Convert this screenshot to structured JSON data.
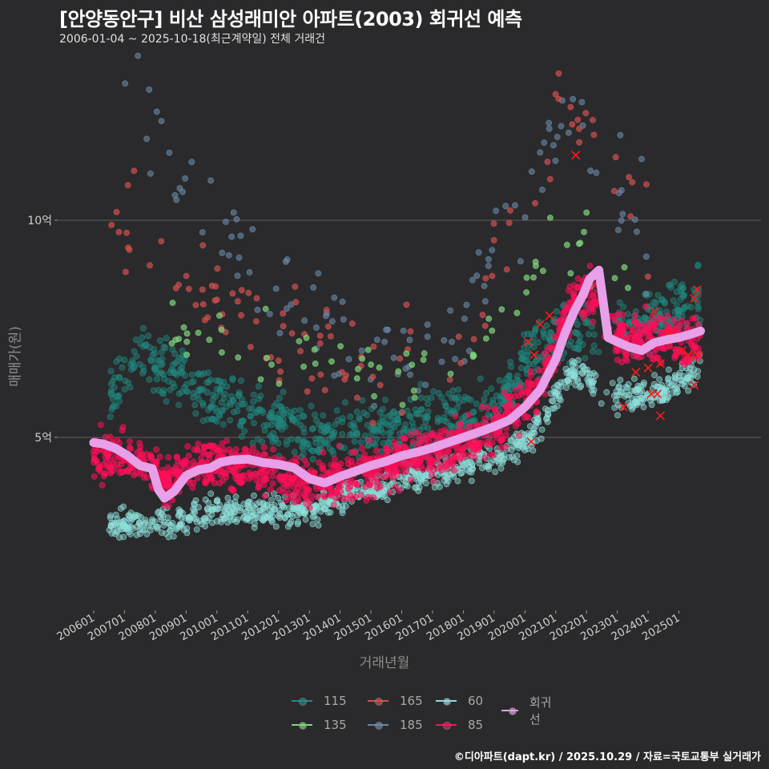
{
  "header": {
    "title": "[안양동안구] 비산 삼성래미안 아파트(2003) 회귀선 예측",
    "subtitle": "2006-01-04 ~ 2025-10-18(최근계약일) 전체 거래건"
  },
  "axes": {
    "ylabel": "매매가(원)",
    "xlabel": "거래년월"
  },
  "legend": {
    "items": [
      {
        "label": "115",
        "color": "#1f8a80"
      },
      {
        "label": "165",
        "color": "#d05050"
      },
      {
        "label": "60",
        "color": "#8fe0dc"
      },
      {
        "label": "회귀선",
        "color": "#e8a0e8"
      },
      {
        "label": "135",
        "color": "#7ed67a"
      },
      {
        "label": "185",
        "color": "#6a8aa8"
      },
      {
        "label": "85",
        "color": "#ff0f5a"
      }
    ]
  },
  "footer": {
    "credit": "©디아파트(dapt.kr) / 2025.10.29 / 자료=국토교통부 실거래가"
  },
  "chart_data": {
    "type": "scatter",
    "title": "[안양동안구] 비산 삼성래미안 아파트(2003) 회귀선 예측",
    "subtitle": "2006-01-04 ~ 2025-10-18(최근계약일) 전체 거래건",
    "xlabel": "거래년월",
    "ylabel": "매매가(원)",
    "x_ticks": [
      "200601",
      "200701",
      "200801",
      "200901",
      "201001",
      "201101",
      "201201",
      "201301",
      "201401",
      "201501",
      "201601",
      "201701",
      "201801",
      "201901",
      "202001",
      "202101",
      "202201",
      "202301",
      "202401",
      "202501"
    ],
    "y_ticks": [
      {
        "value": 5,
        "label": "5억"
      },
      {
        "value": 10,
        "label": "10억"
      }
    ],
    "y_unit": "억원",
    "ylim": [
      1.9,
      14.0
    ],
    "grid": "horizontal major lines at 5억, 10억",
    "legend_position": "bottom",
    "series": [
      {
        "name": "60",
        "color": "#8fe0dc",
        "approx_trend": [
          [
            2006.5,
            3.0
          ],
          [
            2008,
            3.0
          ],
          [
            2010,
            3.3
          ],
          [
            2012,
            3.3
          ],
          [
            2013,
            3.3
          ],
          [
            2014,
            3.6
          ],
          [
            2016,
            4.0
          ],
          [
            2018,
            4.4
          ],
          [
            2019.5,
            4.6
          ],
          [
            2020.5,
            5.2
          ],
          [
            2021.5,
            6.6
          ],
          [
            2023,
            5.9
          ],
          [
            2024.5,
            6.1
          ],
          [
            2025.7,
            6.6
          ]
        ]
      },
      {
        "name": "85",
        "color": "#ff0f5a",
        "approx_trend": [
          [
            2006,
            4.6
          ],
          [
            2007.5,
            4.5
          ],
          [
            2008.5,
            3.9
          ],
          [
            2009,
            4.3
          ],
          [
            2010,
            4.4
          ],
          [
            2012,
            4.2
          ],
          [
            2013,
            3.9
          ],
          [
            2015,
            4.3
          ],
          [
            2017,
            4.6
          ],
          [
            2019,
            5.2
          ],
          [
            2020.5,
            6.3
          ],
          [
            2021.5,
            8.0
          ],
          [
            2022,
            8.4
          ],
          [
            2023,
            7.3
          ],
          [
            2024.5,
            7.3
          ],
          [
            2025.7,
            7.2
          ]
        ]
      },
      {
        "name": "115",
        "color": "#1f8a80",
        "approx_trend": [
          [
            2006.5,
            6.0
          ],
          [
            2007.5,
            7.0
          ],
          [
            2009.5,
            6.0
          ],
          [
            2011,
            5.5
          ],
          [
            2013,
            5.0
          ],
          [
            2015,
            5.2
          ],
          [
            2017,
            5.4
          ],
          [
            2019,
            5.6
          ],
          [
            2021,
            7.5
          ],
          [
            2023.5,
            7.5
          ],
          [
            2025.7,
            8.2
          ]
        ]
      },
      {
        "name": "135",
        "color": "#7ed67a",
        "approx_trend": [
          [
            2008,
            7.5
          ],
          [
            2011,
            7.2
          ],
          [
            2015,
            6.2
          ],
          [
            2018,
            6.3
          ],
          [
            2021,
            9.8
          ],
          [
            2024,
            8.7
          ]
        ]
      },
      {
        "name": "165",
        "color": "#d05050",
        "approx_trend": [
          [
            2006.5,
            9.9
          ],
          [
            2008,
            9.2
          ],
          [
            2010,
            8.1
          ],
          [
            2015,
            6.6
          ],
          [
            2018,
            7.0
          ],
          [
            2021,
            12.8
          ],
          [
            2024,
            10.0
          ]
        ]
      },
      {
        "name": "185",
        "color": "#6a8aa8",
        "approx_trend": [
          [
            2007,
            13.3
          ],
          [
            2009,
            10.5
          ],
          [
            2011,
            9.4
          ],
          [
            2015,
            6.8
          ],
          [
            2018,
            7.5
          ],
          [
            2021.5,
            12.7
          ],
          [
            2024,
            9.7
          ]
        ]
      },
      {
        "name": "회귀선",
        "type": "line",
        "color": "#e8a0e8",
        "x": [
          2006.0,
          2006.3,
          2006.7,
          2007.1,
          2007.5,
          2007.9,
          2008.1,
          2008.3,
          2008.6,
          2009.0,
          2009.4,
          2009.8,
          2010.1,
          2010.5,
          2011.0,
          2011.5,
          2012.0,
          2012.5,
          2013.0,
          2013.5,
          2014.0,
          2014.5,
          2015.0,
          2015.5,
          2016.0,
          2016.5,
          2017.0,
          2017.5,
          2018.0,
          2018.5,
          2019.0,
          2019.5,
          2020.0,
          2020.5,
          2021.0,
          2021.3,
          2021.6,
          2021.9,
          2022.1,
          2022.4,
          2022.7,
          2023.0,
          2023.4,
          2023.8,
          2024.2,
          2024.6,
          2025.0,
          2025.4,
          2025.7
        ],
        "values": [
          4.88,
          4.85,
          4.75,
          4.58,
          4.35,
          4.28,
          3.8,
          3.6,
          3.75,
          4.12,
          4.25,
          4.3,
          4.42,
          4.48,
          4.5,
          4.42,
          4.38,
          4.3,
          4.05,
          3.95,
          4.1,
          4.22,
          4.35,
          4.45,
          4.58,
          4.66,
          4.76,
          4.88,
          5.0,
          5.12,
          5.25,
          5.4,
          5.7,
          6.1,
          6.8,
          7.4,
          7.9,
          8.3,
          8.65,
          8.85,
          7.3,
          7.2,
          7.08,
          7.0,
          7.18,
          7.25,
          7.3,
          7.38,
          7.45
        ]
      }
    ],
    "annotations": "red X markers indicate recent/cancelled transactions near 2020-2025"
  }
}
